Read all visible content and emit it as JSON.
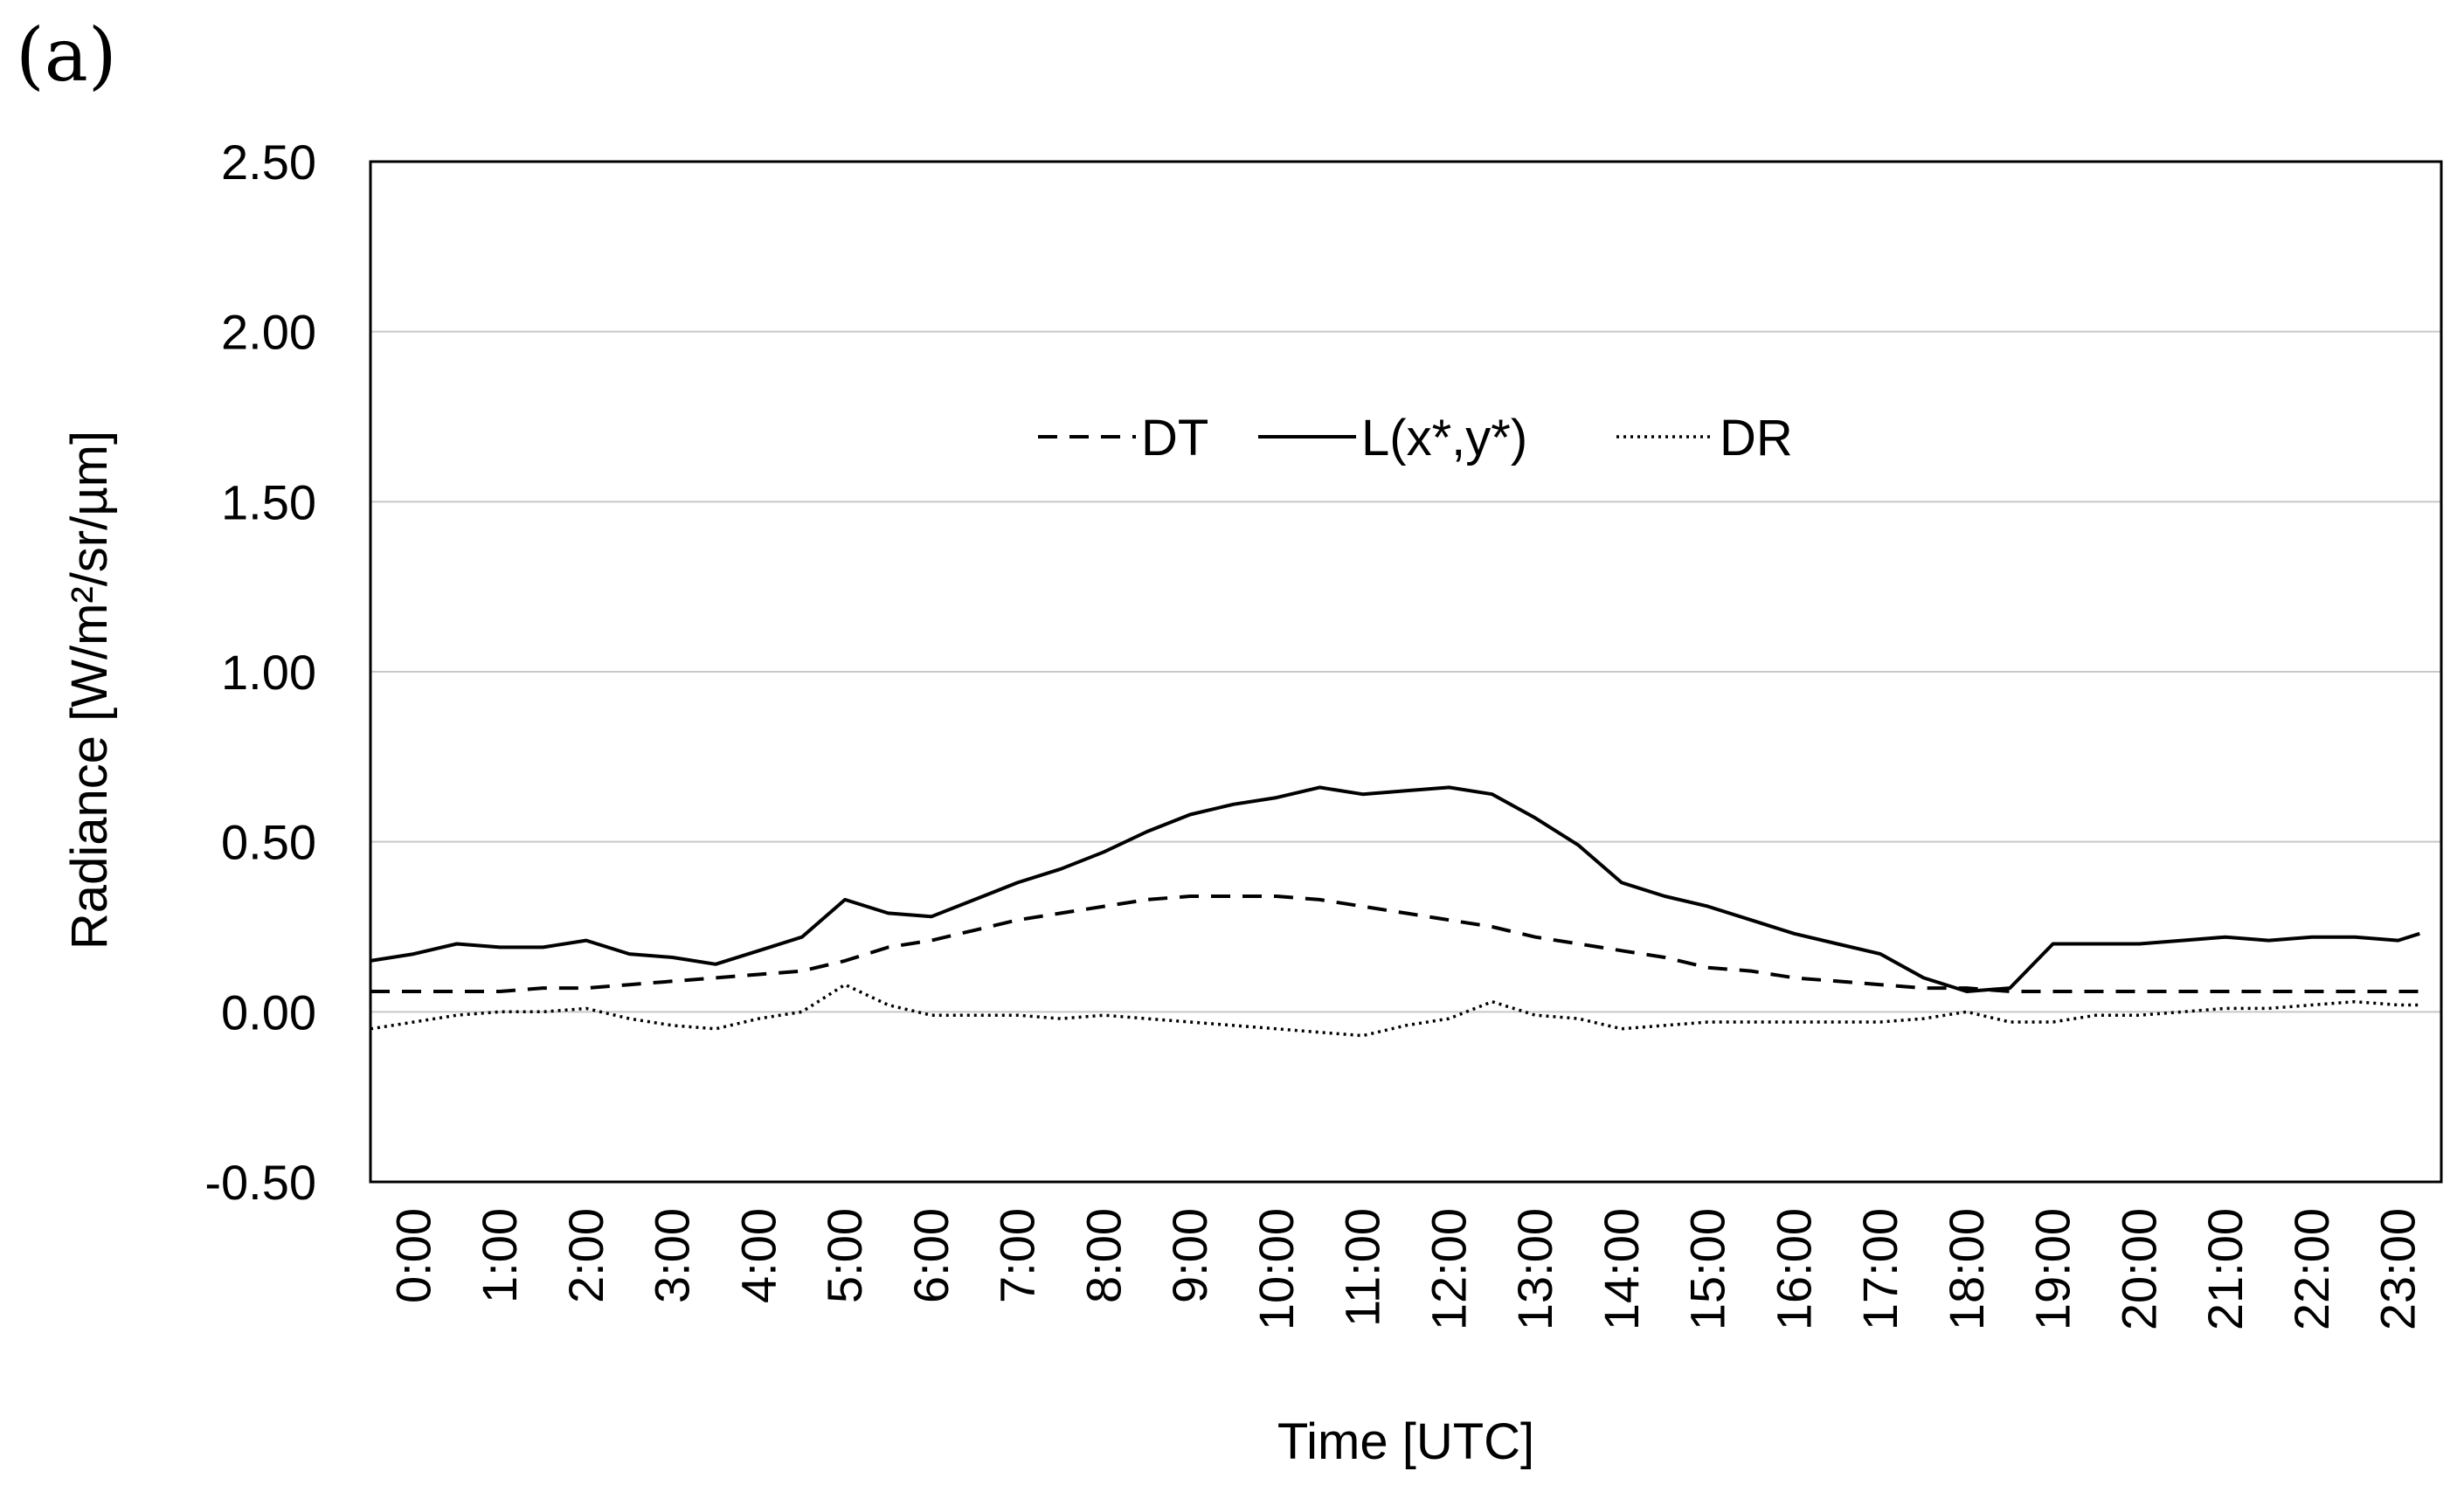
{
  "panel_label": "(a)",
  "chart_data": {
    "type": "line",
    "title": "",
    "xlabel": "Time [UTC]",
    "ylabel": "Radiance [W/m²/sr/µm]",
    "ylim": [
      -0.5,
      2.5
    ],
    "yticks": [
      "-0.50",
      "0.00",
      "0.50",
      "1.00",
      "1.50",
      "2.00",
      "2.50"
    ],
    "xticks": [
      "0:00",
      "1:00",
      "2:00",
      "3:00",
      "4:00",
      "5:00",
      "6:00",
      "7:00",
      "8:00",
      "9:00",
      "10:00",
      "11:00",
      "12:00",
      "13:00",
      "14:00",
      "15:00",
      "16:00",
      "17:00",
      "18:00",
      "19:00",
      "20:00",
      "21:00",
      "22:00",
      "23:00"
    ],
    "xlim_hours": [
      0,
      24
    ],
    "grid": true,
    "legend_position": "top-center",
    "x_hours": [
      0,
      0.5,
      1,
      1.5,
      2,
      2.5,
      3,
      3.5,
      4,
      4.5,
      5,
      5.5,
      6,
      6.5,
      7,
      7.5,
      8,
      8.5,
      9,
      9.5,
      10,
      10.5,
      11,
      11.5,
      12,
      12.5,
      13,
      13.5,
      14,
      14.5,
      15,
      15.5,
      16,
      16.5,
      17,
      17.5,
      18,
      18.5,
      19,
      19.5,
      20,
      20.5,
      21,
      21.5,
      22,
      22.5,
      23,
      23.5,
      23.75
    ],
    "series": [
      {
        "name": "DT",
        "style": "dashed",
        "values": [
          0.06,
          0.06,
          0.06,
          0.06,
          0.07,
          0.07,
          0.08,
          0.09,
          0.1,
          0.11,
          0.12,
          0.15,
          0.19,
          0.21,
          0.24,
          0.27,
          0.29,
          0.31,
          0.33,
          0.34,
          0.34,
          0.34,
          0.33,
          0.31,
          0.29,
          0.27,
          0.25,
          0.22,
          0.2,
          0.18,
          0.16,
          0.13,
          0.12,
          0.1,
          0.09,
          0.08,
          0.07,
          0.07,
          0.06,
          0.06,
          0.06,
          0.06,
          0.06,
          0.06,
          0.06,
          0.06,
          0.06,
          0.06,
          0.06
        ]
      },
      {
        "name": "L(x*,y*)",
        "style": "solid",
        "values": [
          0.15,
          0.17,
          0.2,
          0.19,
          0.19,
          0.21,
          0.17,
          0.16,
          0.14,
          0.18,
          0.22,
          0.33,
          0.29,
          0.28,
          0.33,
          0.38,
          0.42,
          0.47,
          0.53,
          0.58,
          0.61,
          0.63,
          0.66,
          0.64,
          0.65,
          0.66,
          0.64,
          0.57,
          0.49,
          0.38,
          0.34,
          0.31,
          0.27,
          0.23,
          0.2,
          0.17,
          0.1,
          0.06,
          0.07,
          0.2,
          0.2,
          0.2,
          0.21,
          0.22,
          0.21,
          0.22,
          0.22,
          0.21,
          0.23
        ]
      },
      {
        "name": "DR",
        "style": "dotted",
        "values": [
          -0.05,
          -0.03,
          -0.01,
          0.0,
          0.0,
          0.01,
          -0.02,
          -0.04,
          -0.05,
          -0.02,
          0.0,
          0.08,
          0.02,
          -0.01,
          -0.01,
          -0.01,
          -0.02,
          -0.01,
          -0.02,
          -0.03,
          -0.04,
          -0.05,
          -0.06,
          -0.07,
          -0.04,
          -0.02,
          0.03,
          -0.01,
          -0.02,
          -0.05,
          -0.04,
          -0.03,
          -0.03,
          -0.03,
          -0.03,
          -0.03,
          -0.02,
          0.0,
          -0.03,
          -0.03,
          -0.01,
          -0.01,
          0.0,
          0.01,
          0.01,
          0.02,
          0.03,
          0.02,
          0.02
        ]
      }
    ]
  }
}
